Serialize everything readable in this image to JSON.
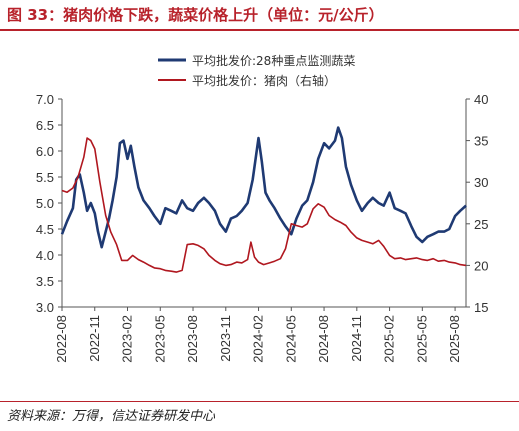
{
  "figure_title": "图 33：猪肉价格下跌，蔬菜价格上升（单位：元/公斤）",
  "source_note": "资料来源：万得，信达证券研发中心",
  "chart_data": {
    "type": "line",
    "title": "",
    "xlabel": "",
    "ylabel": "",
    "ylim": [
      3.0,
      7.0
    ],
    "y2lim": [
      15,
      40
    ],
    "y_ticks": [
      "3.0",
      "3.5",
      "4.0",
      "4.5",
      "5.0",
      "5.5",
      "6.0",
      "6.5",
      "7.0"
    ],
    "y2_ticks": [
      "15",
      "20",
      "25",
      "30",
      "35",
      "40"
    ],
    "x_ticks": [
      "2022-08",
      "2022-11",
      "2023-02",
      "2023-05",
      "2023-08",
      "2023-11",
      "2024-02",
      "2024-05",
      "2024-08",
      "2024-11",
      "2025-02",
      "2025-05",
      "2025-08"
    ],
    "x_range": [
      "2022-08",
      "2025-09"
    ],
    "grid": false,
    "legend_placement": "top-center",
    "series": [
      {
        "name": "平均批发价:28种重点监测蔬菜",
        "axis": "left",
        "color": "#1F3A73",
        "points": [
          [
            "2022-08",
            4.4
          ],
          [
            "2022-08-15",
            4.65
          ],
          [
            "2022-09",
            4.9
          ],
          [
            "2022-09-10",
            5.45
          ],
          [
            "2022-09-20",
            5.55
          ],
          [
            "2022-10",
            5.2
          ],
          [
            "2022-10-10",
            4.85
          ],
          [
            "2022-10-20",
            5.0
          ],
          [
            "2022-11",
            4.8
          ],
          [
            "2022-11-10",
            4.45
          ],
          [
            "2022-11-20",
            4.15
          ],
          [
            "2022-12",
            4.45
          ],
          [
            "2022-12-10",
            4.7
          ],
          [
            "2022-12-20",
            5.05
          ],
          [
            "2023-01",
            5.5
          ],
          [
            "2023-01-10",
            6.15
          ],
          [
            "2023-01-20",
            6.2
          ],
          [
            "2023-02",
            5.85
          ],
          [
            "2023-02-10",
            6.1
          ],
          [
            "2023-02-20",
            5.7
          ],
          [
            "2023-03",
            5.3
          ],
          [
            "2023-03-15",
            5.05
          ],
          [
            "2023-04",
            4.9
          ],
          [
            "2023-04-15",
            4.75
          ],
          [
            "2023-05",
            4.6
          ],
          [
            "2023-05-15",
            4.9
          ],
          [
            "2023-06",
            4.85
          ],
          [
            "2023-06-15",
            4.8
          ],
          [
            "2023-07",
            5.05
          ],
          [
            "2023-07-15",
            4.9
          ],
          [
            "2023-08",
            4.85
          ],
          [
            "2023-08-15",
            5.0
          ],
          [
            "2023-09",
            5.1
          ],
          [
            "2023-09-15",
            5.0
          ],
          [
            "2023-10",
            4.85
          ],
          [
            "2023-10-15",
            4.6
          ],
          [
            "2023-11",
            4.45
          ],
          [
            "2023-11-15",
            4.7
          ],
          [
            "2023-12",
            4.75
          ],
          [
            "2023-12-15",
            4.85
          ],
          [
            "2024-01",
            5.0
          ],
          [
            "2024-01-15",
            5.45
          ],
          [
            "2024-02",
            6.25
          ],
          [
            "2024-02-10",
            5.8
          ],
          [
            "2024-02-20",
            5.2
          ],
          [
            "2024-03",
            5.05
          ],
          [
            "2024-03-15",
            4.9
          ],
          [
            "2024-04",
            4.7
          ],
          [
            "2024-04-15",
            4.55
          ],
          [
            "2024-05",
            4.4
          ],
          [
            "2024-05-15",
            4.7
          ],
          [
            "2024-06",
            4.95
          ],
          [
            "2024-06-15",
            5.05
          ],
          [
            "2024-07",
            5.4
          ],
          [
            "2024-07-15",
            5.85
          ],
          [
            "2024-08",
            6.15
          ],
          [
            "2024-08-15",
            6.05
          ],
          [
            "2024-09",
            6.2
          ],
          [
            "2024-09-10",
            6.45
          ],
          [
            "2024-09-20",
            6.25
          ],
          [
            "2024-10",
            5.7
          ],
          [
            "2024-10-15",
            5.35
          ],
          [
            "2024-11",
            5.05
          ],
          [
            "2024-11-15",
            4.85
          ],
          [
            "2024-12",
            5.0
          ],
          [
            "2024-12-15",
            5.1
          ],
          [
            "2025-01",
            5.0
          ],
          [
            "2025-01-15",
            4.95
          ],
          [
            "2025-02",
            5.2
          ],
          [
            "2025-02-15",
            4.9
          ],
          [
            "2025-03",
            4.85
          ],
          [
            "2025-03-15",
            4.8
          ],
          [
            "2025-04",
            4.55
          ],
          [
            "2025-04-15",
            4.35
          ],
          [
            "2025-05",
            4.25
          ],
          [
            "2025-05-15",
            4.35
          ],
          [
            "2025-06",
            4.4
          ],
          [
            "2025-06-15",
            4.45
          ],
          [
            "2025-07",
            4.45
          ],
          [
            "2025-07-15",
            4.5
          ],
          [
            "2025-08",
            4.75
          ],
          [
            "2025-08-15",
            4.85
          ],
          [
            "2025-09",
            4.95
          ]
        ]
      },
      {
        "name": "平均批发价：猪肉（右轴）",
        "axis": "right",
        "color": "#B0171F",
        "points": [
          [
            "2022-08",
            29.0
          ],
          [
            "2022-08-15",
            28.8
          ],
          [
            "2022-09",
            29.3
          ],
          [
            "2022-09-15",
            30.6
          ],
          [
            "2022-10",
            33.0
          ],
          [
            "2022-10-10",
            35.3
          ],
          [
            "2022-10-20",
            35.0
          ],
          [
            "2022-11",
            34.0
          ],
          [
            "2022-11-15",
            30.0
          ],
          [
            "2022-12",
            26.0
          ],
          [
            "2022-12-15",
            24.0
          ],
          [
            "2023-01",
            22.5
          ],
          [
            "2023-01-15",
            20.6
          ],
          [
            "2023-02",
            20.6
          ],
          [
            "2023-02-15",
            21.2
          ],
          [
            "2023-03",
            20.7
          ],
          [
            "2023-03-15",
            20.4
          ],
          [
            "2023-04",
            20.0
          ],
          [
            "2023-04-15",
            19.7
          ],
          [
            "2023-05",
            19.6
          ],
          [
            "2023-05-15",
            19.4
          ],
          [
            "2023-06",
            19.3
          ],
          [
            "2023-06-15",
            19.2
          ],
          [
            "2023-07",
            19.4
          ],
          [
            "2023-07-15",
            22.5
          ],
          [
            "2023-08",
            22.6
          ],
          [
            "2023-08-15",
            22.4
          ],
          [
            "2023-09",
            22.0
          ],
          [
            "2023-09-15",
            21.2
          ],
          [
            "2023-10",
            20.6
          ],
          [
            "2023-10-15",
            20.2
          ],
          [
            "2023-11",
            20.0
          ],
          [
            "2023-11-15",
            20.1
          ],
          [
            "2023-12",
            20.4
          ],
          [
            "2023-12-15",
            20.3
          ],
          [
            "2024-01",
            20.7
          ],
          [
            "2024-01-10",
            22.8
          ],
          [
            "2024-01-20",
            21.0
          ],
          [
            "2024-02",
            20.4
          ],
          [
            "2024-02-15",
            20.1
          ],
          [
            "2024-03",
            20.3
          ],
          [
            "2024-03-15",
            20.5
          ],
          [
            "2024-04",
            20.8
          ],
          [
            "2024-04-15",
            22.0
          ],
          [
            "2024-05",
            25.0
          ],
          [
            "2024-05-15",
            24.8
          ],
          [
            "2024-06",
            24.6
          ],
          [
            "2024-06-15",
            25.0
          ],
          [
            "2024-07",
            26.8
          ],
          [
            "2024-07-15",
            27.4
          ],
          [
            "2024-08",
            27.0
          ],
          [
            "2024-08-15",
            26.0
          ],
          [
            "2024-09",
            25.5
          ],
          [
            "2024-09-15",
            25.2
          ],
          [
            "2024-10",
            24.8
          ],
          [
            "2024-10-15",
            24.0
          ],
          [
            "2024-11",
            23.3
          ],
          [
            "2024-11-15",
            23.0
          ],
          [
            "2024-12",
            22.8
          ],
          [
            "2024-12-15",
            22.6
          ],
          [
            "2025-01",
            23.0
          ],
          [
            "2025-01-15",
            22.3
          ],
          [
            "2025-02",
            21.2
          ],
          [
            "2025-02-15",
            20.8
          ],
          [
            "2025-03",
            20.9
          ],
          [
            "2025-03-15",
            20.7
          ],
          [
            "2025-04",
            20.8
          ],
          [
            "2025-04-15",
            20.9
          ],
          [
            "2025-05",
            20.7
          ],
          [
            "2025-05-15",
            20.6
          ],
          [
            "2025-06",
            20.8
          ],
          [
            "2025-06-15",
            20.5
          ],
          [
            "2025-07",
            20.6
          ],
          [
            "2025-07-15",
            20.4
          ],
          [
            "2025-08",
            20.3
          ],
          [
            "2025-08-15",
            20.1
          ],
          [
            "2025-09",
            20.0
          ]
        ]
      }
    ]
  }
}
